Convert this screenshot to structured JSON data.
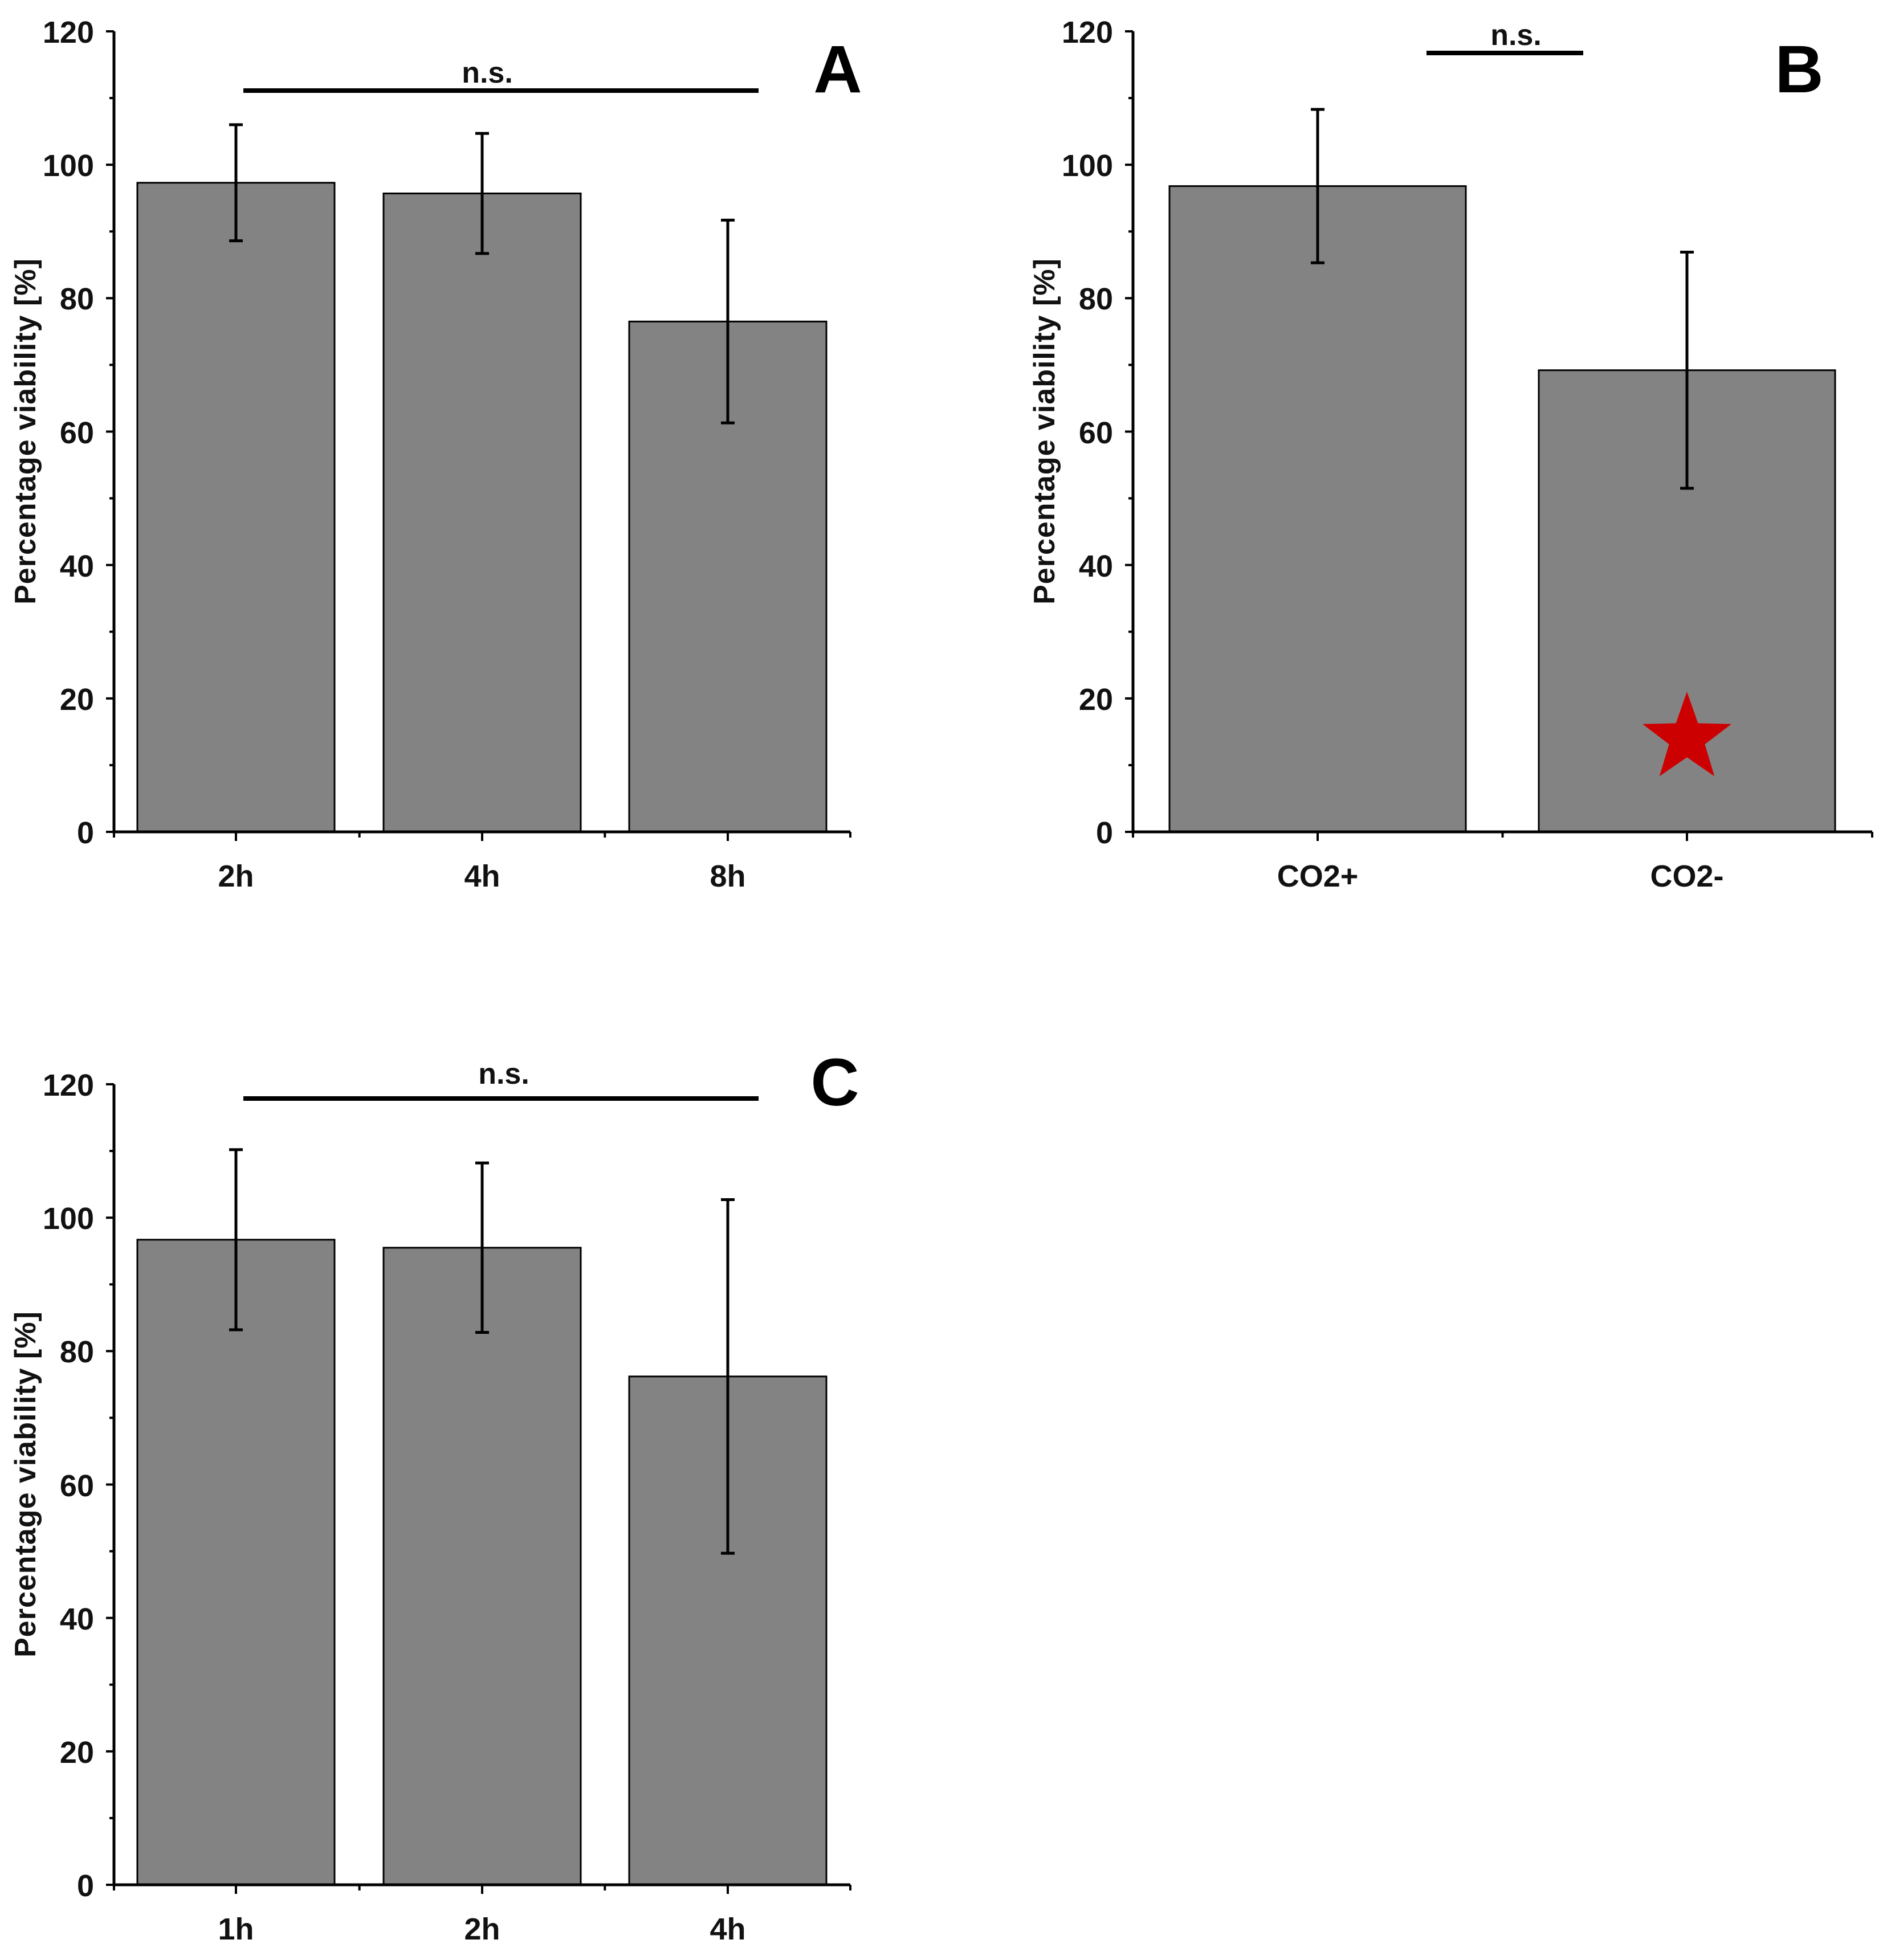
{
  "colors": {
    "bar_fill": "#838383",
    "marker": "#cc0000",
    "axis": "#000000"
  },
  "chart_data": [
    {
      "panel": "A",
      "type": "bar",
      "categories": [
        "2h",
        "4h",
        "8h"
      ],
      "values": [
        97.3,
        95.7,
        76.5
      ],
      "errors": [
        8.7,
        9.0,
        15.2
      ],
      "ylabel": "Percentage viability [%]",
      "xlabel": "",
      "ylim": [
        0,
        120
      ],
      "yticks": [
        0,
        20,
        40,
        60,
        80,
        100,
        120
      ],
      "yticks_labels": [
        "0",
        "20",
        "40",
        "60",
        "80",
        "100",
        "120"
      ],
      "significance": {
        "label": "n.s.",
        "from": 0,
        "to": 2,
        "y": 111
      },
      "marker": null
    },
    {
      "panel": "B",
      "type": "bar",
      "categories": [
        "CO2+",
        "CO2-"
      ],
      "values": [
        96.8,
        69.2
      ],
      "errors": [
        11.5,
        17.7
      ],
      "ylabel": "Percentage viability [%]",
      "xlabel": "",
      "ylim": [
        0,
        120
      ],
      "yticks": [
        0,
        20,
        40,
        60,
        80,
        100,
        120
      ],
      "yticks_labels": [
        "0",
        "20",
        "40",
        "60",
        "80",
        "100",
        "120"
      ],
      "significance": {
        "label": "n.s.",
        "y": 117
      },
      "marker": {
        "shape": "star",
        "category": 1,
        "value": 14
      }
    },
    {
      "panel": "C",
      "type": "bar",
      "categories": [
        "1h",
        "2h",
        "4h"
      ],
      "values": [
        96.7,
        95.5,
        76.2
      ],
      "errors": [
        13.5,
        12.7,
        26.5
      ],
      "ylabel": "Percentage viability [%]",
      "xlabel": "",
      "ylim": [
        0,
        120
      ],
      "yticks": [
        0,
        20,
        40,
        60,
        80,
        100,
        120
      ],
      "yticks_labels": [
        "0",
        "20",
        "40",
        "60",
        "80",
        "100",
        "120"
      ],
      "significance": {
        "label": "n.s.",
        "from": 0,
        "to": 2,
        "y": 118
      },
      "marker": null
    }
  ]
}
